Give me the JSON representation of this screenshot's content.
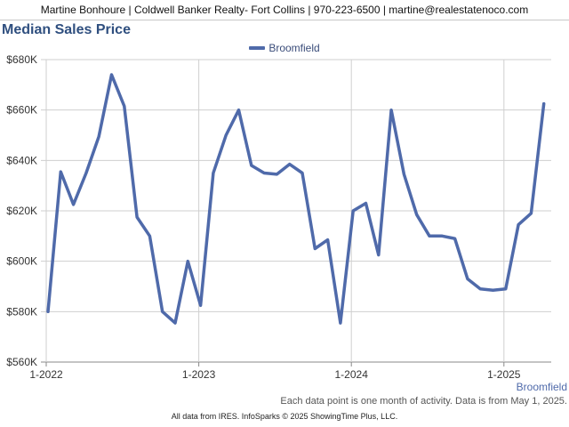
{
  "header": {
    "text": "Martine Bonhoure | Coldwell Banker Realty- Fort Collins | 970-223-6500 | martine@realestatenoco.com"
  },
  "chart_title": "Median Sales Price",
  "legend": {
    "label": "Broomfield",
    "color": "#4f6aaa"
  },
  "series_tag": "Broomfield",
  "note": "Each data point is one month of activity. Data is from May 1, 2025.",
  "footer": "All data from IRES. InfoSparks © 2025 ShowingTime Plus, LLC.",
  "chart_data": {
    "type": "line",
    "title": "Median Sales Price",
    "xlabel": "",
    "ylabel": "",
    "ylim": [
      560000,
      680000
    ],
    "yticks": [
      560000,
      580000,
      600000,
      620000,
      640000,
      660000,
      680000
    ],
    "ytick_labels": [
      "$560K",
      "$580K",
      "$600K",
      "$620K",
      "$640K",
      "$660K",
      "$680K"
    ],
    "xtick_labels": [
      "1-2022",
      "1-2023",
      "1-2024",
      "1-2025"
    ],
    "grid": true,
    "legend_position": "top-center",
    "x": [
      "2022-01",
      "2022-02",
      "2022-03",
      "2022-04",
      "2022-05",
      "2022-06",
      "2022-07",
      "2022-08",
      "2022-09",
      "2022-10",
      "2022-11",
      "2022-12",
      "2023-01",
      "2023-02",
      "2023-03",
      "2023-04",
      "2023-05",
      "2023-06",
      "2023-07",
      "2023-08",
      "2023-09",
      "2023-10",
      "2023-11",
      "2023-12",
      "2024-01",
      "2024-02",
      "2024-03",
      "2024-04",
      "2024-05",
      "2024-06",
      "2024-07",
      "2024-08",
      "2024-09",
      "2024-10",
      "2024-11",
      "2024-12",
      "2025-01",
      "2025-02",
      "2025-03",
      "2025-04"
    ],
    "series": [
      {
        "name": "Broomfield",
        "color": "#4f6aaa",
        "values": [
          580000,
          635500,
          622500,
          635000,
          649500,
          674000,
          661500,
          617500,
          610000,
          580000,
          575500,
          600000,
          582500,
          635000,
          650000,
          660000,
          638000,
          635000,
          634500,
          638500,
          635000,
          605000,
          608500,
          575500,
          620000,
          623000,
          602500,
          660000,
          634500,
          618500,
          610000,
          610000,
          609000,
          593000,
          589000,
          588500,
          589000,
          614500,
          619000,
          662500
        ]
      }
    ]
  }
}
